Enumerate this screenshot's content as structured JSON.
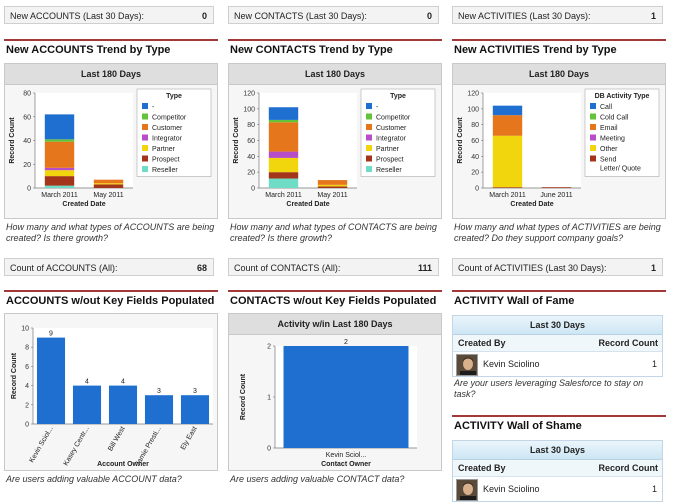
{
  "metrics_top": [
    {
      "label": "New ACCOUNTS (Last 30 Days):",
      "value": "0"
    },
    {
      "label": "New CONTACTS (Last 30 Days):",
      "value": "0"
    },
    {
      "label": "New ACTIVITIES (Last 30 Days):",
      "value": "1"
    }
  ],
  "metrics_mid": [
    {
      "label": "Count of ACCOUNTS (All):",
      "value": "68"
    },
    {
      "label": "Count of CONTACTS (All):",
      "value": "111"
    },
    {
      "label": "Count of ACTIVITIES (Last 30 Days):",
      "value": "1"
    }
  ],
  "sections": {
    "acc_trend": {
      "title": "New ACCOUNTS Trend by Type",
      "panel": "Last 180 Days",
      "desc": "How many and what types of ACCOUNTS are being created? Is there growth?"
    },
    "con_trend": {
      "title": "New CONTACTS Trend by Type",
      "panel": "Last 180 Days",
      "desc": "How many and what types of CONTACTS are being created? Is there growth?"
    },
    "act_trend": {
      "title": "New ACTIVITIES Trend by Type",
      "panel": "Last 180 Days",
      "desc": "How many and what types of ACTIVITIES are being created? Do they support company goals?"
    },
    "acc_key": {
      "title": "ACCOUNTS w/out Key Fields Populated",
      "desc": "Are users adding valuable ACCOUNT data?"
    },
    "con_key": {
      "title": "CONTACTS w/out Key Fields Populated",
      "panel": "Activity w/in Last 180 Days",
      "desc": "Are users adding valuable CONTACT data?"
    },
    "fame": {
      "title": "ACTIVITY Wall of Fame",
      "panel": "Last 30 Days",
      "col1": "Created By",
      "col2": "Record Count",
      "user": "Kevin Sciolino",
      "count": "1",
      "desc": "Are your users leveraging Salesforce to stay on task?"
    },
    "shame": {
      "title": "ACTIVITY Wall of Shame",
      "panel": "Last 30 Days",
      "col1": "Created By",
      "col2": "Record Count",
      "user": "Kevin Sciolino",
      "count": "1"
    }
  },
  "chart_data": [
    {
      "type": "bar",
      "stacked": true,
      "ylabel": "Record Count",
      "xlabel": "Created Date",
      "ylim": [
        0,
        80
      ],
      "yticks": [
        "0",
        "20",
        "40",
        "60",
        "80"
      ],
      "categories": [
        "March 2011",
        "May 2011"
      ],
      "legend_title": "Type",
      "series": [
        {
          "name": "-",
          "color": "#1f6fd0",
          "values": [
            21,
            0
          ]
        },
        {
          "name": "Competitor",
          "color": "#62c23a",
          "values": [
            2,
            0
          ]
        },
        {
          "name": "Customer",
          "color": "#e6761b",
          "values": [
            22,
            3
          ]
        },
        {
          "name": "Integrator",
          "color": "#b54ec7",
          "values": [
            2,
            0
          ]
        },
        {
          "name": "Partner",
          "color": "#f1d60e",
          "values": [
            5,
            1
          ]
        },
        {
          "name": "Prospect",
          "color": "#a3361a",
          "values": [
            8,
            3
          ]
        },
        {
          "name": "Reseller",
          "color": "#6fdcc6",
          "values": [
            2,
            0
          ]
        }
      ]
    },
    {
      "type": "bar",
      "stacked": true,
      "ylabel": "Record Count",
      "xlabel": "Created Date",
      "ylim": [
        0,
        120
      ],
      "yticks": [
        "0",
        "20",
        "40",
        "60",
        "80",
        "100",
        "120"
      ],
      "categories": [
        "March 2011",
        "May 2011"
      ],
      "legend_title": "Type",
      "series": [
        {
          "name": "-",
          "color": "#1f6fd0",
          "values": [
            16,
            0
          ]
        },
        {
          "name": "Competitor",
          "color": "#62c23a",
          "values": [
            3,
            0
          ]
        },
        {
          "name": "Customer",
          "color": "#e6761b",
          "values": [
            37,
            6
          ]
        },
        {
          "name": "Integrator",
          "color": "#b54ec7",
          "values": [
            8,
            0
          ]
        },
        {
          "name": "Partner",
          "color": "#f1d60e",
          "values": [
            18,
            2
          ]
        },
        {
          "name": "Prospect",
          "color": "#a3361a",
          "values": [
            8,
            2
          ]
        },
        {
          "name": "Reseller",
          "color": "#6fdcc6",
          "values": [
            12,
            0
          ]
        }
      ]
    },
    {
      "type": "bar",
      "stacked": true,
      "ylabel": "Record Count",
      "xlabel": "Created Date",
      "ylim": [
        0,
        120
      ],
      "yticks": [
        "0",
        "20",
        "40",
        "60",
        "80",
        "100",
        "120"
      ],
      "categories": [
        "March 2011",
        "June 2011"
      ],
      "legend_title": "DB Activity Type",
      "series": [
        {
          "name": "Call",
          "color": "#1f6fd0",
          "values": [
            12,
            0
          ]
        },
        {
          "name": "Cold Call",
          "color": "#62c23a",
          "values": [
            0,
            0
          ]
        },
        {
          "name": "Email",
          "color": "#e6761b",
          "values": [
            26,
            0
          ]
        },
        {
          "name": "Meeting",
          "color": "#b54ec7",
          "values": [
            0,
            0
          ]
        },
        {
          "name": "Other",
          "color": "#f1d60e",
          "values": [
            65,
            0
          ]
        },
        {
          "name": "Send Letter/ Quote",
          "color": "#a3361a",
          "values": [
            1,
            1
          ]
        }
      ]
    },
    {
      "type": "bar",
      "ylabel": "Record Count",
      "xlabel": "Account Owner",
      "ylim": [
        0,
        10
      ],
      "yticks": [
        "0",
        "2",
        "4",
        "6",
        "8",
        "10"
      ],
      "categories": [
        "Kevin Sciol...",
        "Kasey Centr...",
        "Bill West",
        "Jamie Presti...",
        "Ely East"
      ],
      "values": [
        9,
        4,
        4,
        3,
        3
      ],
      "value_labels": [
        "9",
        "4",
        "4",
        "3",
        "3"
      ],
      "color": "#1f6fd0"
    },
    {
      "type": "bar",
      "ylabel": "Record Count",
      "xlabel": "Contact Owner",
      "ylim": [
        0,
        2
      ],
      "yticks": [
        "0",
        "1",
        "2"
      ],
      "categories": [
        "Kevin Sciol..."
      ],
      "values": [
        2
      ],
      "value_labels": [
        "2"
      ],
      "color": "#1f6fd0"
    }
  ]
}
